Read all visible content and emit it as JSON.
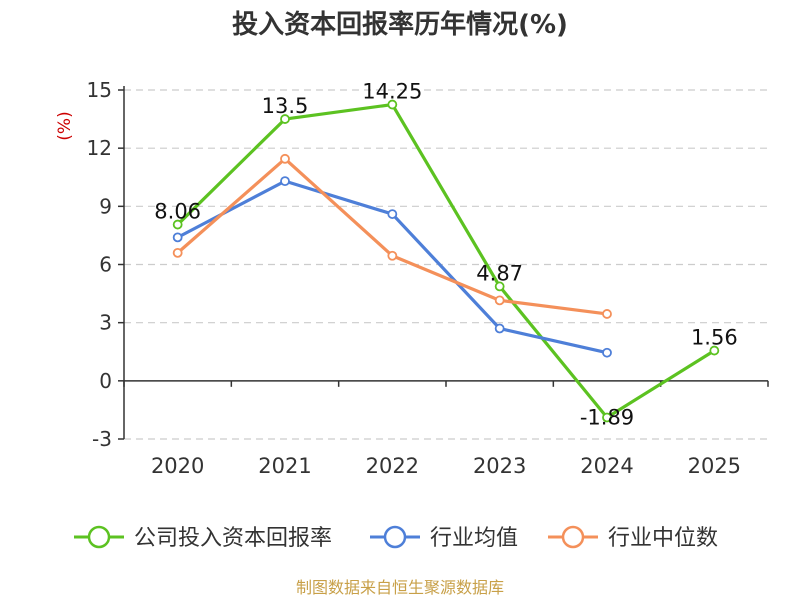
{
  "chart_data": {
    "type": "line",
    "title": "投入资本回报率历年情况(%)",
    "ylabel": "(%)",
    "xlabel": "",
    "categories": [
      "2020",
      "2021",
      "2022",
      "2023",
      "2024",
      "2025"
    ],
    "ylim": [
      -3,
      15
    ],
    "yticks": [
      15,
      12,
      9,
      6,
      3,
      0,
      -3
    ],
    "grid": true,
    "legend_position": "bottom",
    "series": [
      {
        "name": "公司投入资本回报率",
        "color": "#5cc221",
        "values": [
          8.06,
          13.5,
          14.25,
          4.87,
          -1.89,
          1.56
        ],
        "labels": [
          "8.06",
          "13.5",
          "14.25",
          "4.87",
          "-1.89",
          "1.56"
        ]
      },
      {
        "name": "行业均值",
        "color": "#4e7fd8",
        "values": [
          7.4,
          10.3,
          8.6,
          2.7,
          1.45,
          null
        ]
      },
      {
        "name": "行业中位数",
        "color": "#f4905a",
        "values": [
          6.6,
          11.45,
          6.45,
          4.15,
          3.45,
          null
        ]
      }
    ]
  },
  "source_text": "制图数据来自恒生聚源数据库",
  "colors": {
    "unit_label": "#cc0000",
    "source_text": "#c8a048",
    "grid": "#cccccc",
    "axis": "#333333"
  }
}
